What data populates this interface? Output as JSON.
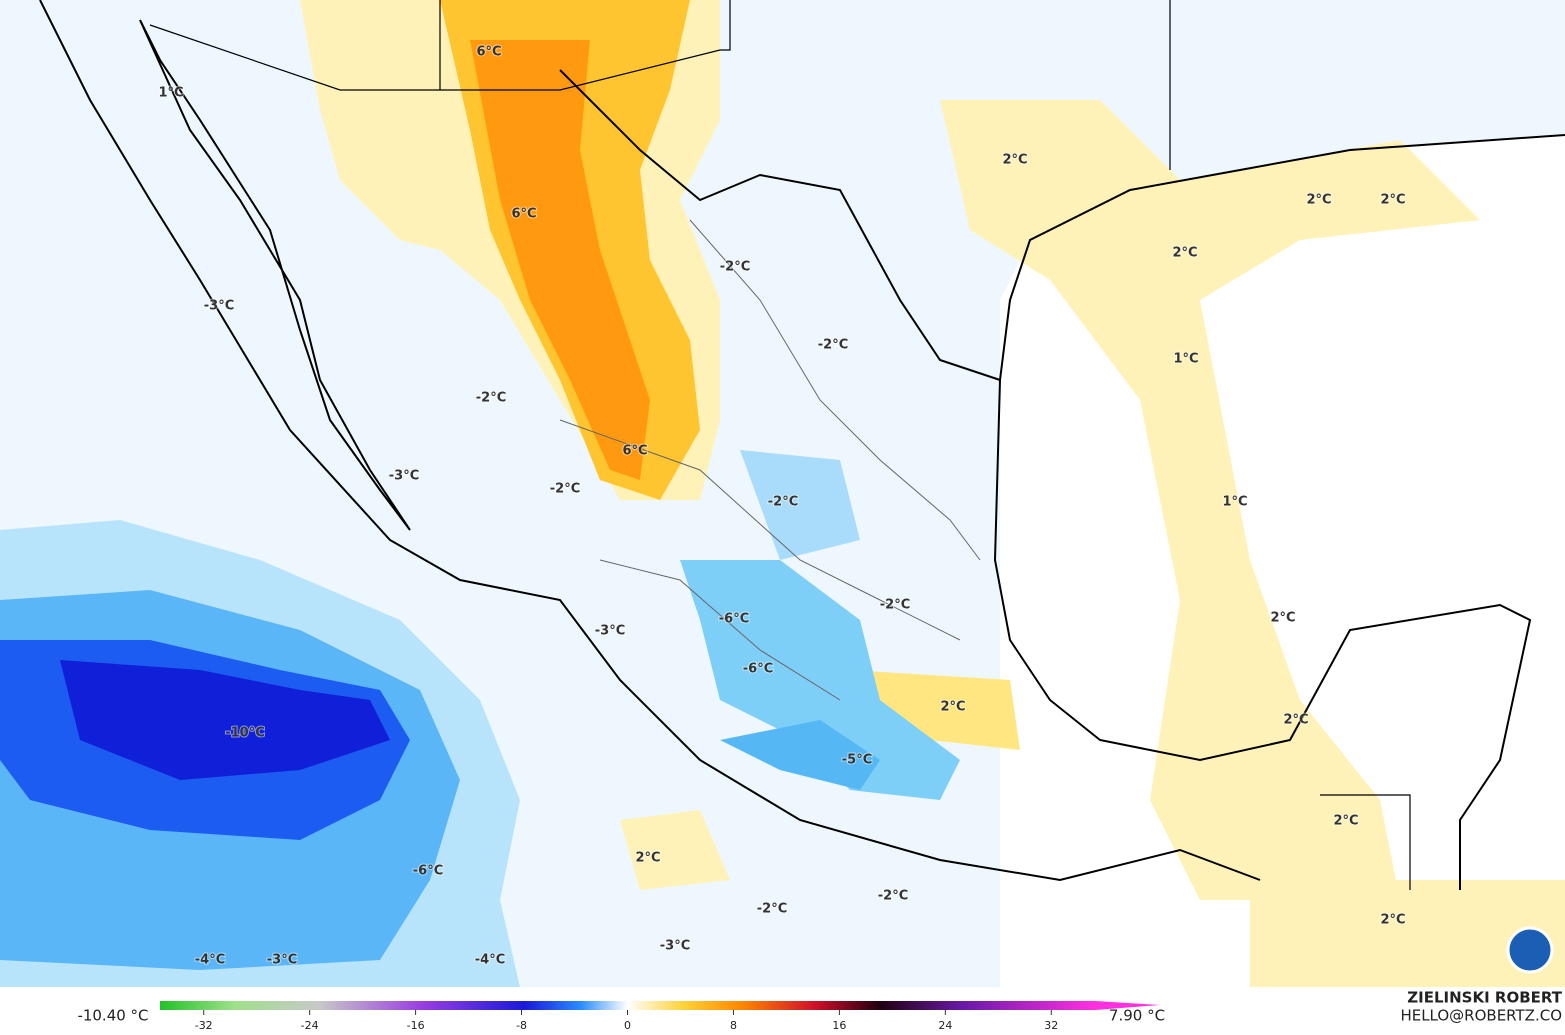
{
  "map": {
    "contour_labels": [
      "6°C",
      "1°C",
      "2°C",
      "6°C",
      "-2°C",
      "2°C",
      "2°C",
      "2°C",
      "-3°C",
      "-2°C",
      "1°C",
      "-2°C",
      "6°C",
      "-3°C",
      "-2°C",
      "-2°C",
      "1°C",
      "-2°C",
      "-6°C",
      "-3°C",
      "2°C",
      "-6°C",
      "2°C",
      "2°C",
      "-10°C",
      "-5°C",
      "2°C",
      "2°C",
      "-6°C",
      "-2°C",
      "-2°C",
      "2°C",
      "-3°C",
      "-4°C",
      "-3°C",
      "-4°C"
    ],
    "colorbar": {
      "lim": [
        -35.3,
        35.3
      ],
      "ticks": [
        -32,
        -24,
        -16,
        -8,
        0,
        8,
        16,
        24,
        32
      ]
    },
    "min_label": "-10.40 °C",
    "max_label": "7.90 °C",
    "credit": "ZIELINSKI ROBERT",
    "contact": "HELLO@ROBERTZ.CO"
  }
}
